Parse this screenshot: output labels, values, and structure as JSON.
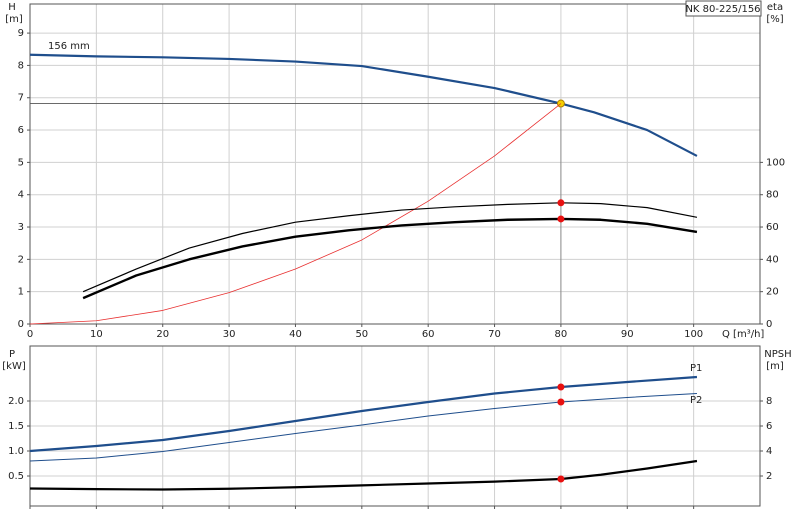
{
  "chart_data": [
    {
      "type": "line",
      "title": "NK 80-225/156",
      "y_label": "H",
      "y_unit": "[m]",
      "y2_label": "eta",
      "y2_unit": "[%]",
      "x_label": "Q [m³/h]",
      "xlim": [
        0,
        110
      ],
      "xticks": [
        0,
        10,
        20,
        30,
        40,
        50,
        60,
        70,
        80,
        90,
        100
      ],
      "ylim": [
        0,
        9.9
      ],
      "yticks": [
        0,
        1,
        2,
        3,
        4,
        5,
        6,
        7,
        8,
        9
      ],
      "y2lim": [
        0,
        198
      ],
      "y2ticks": [
        0,
        20,
        40,
        60,
        80,
        100
      ],
      "grid": true,
      "operating_point": 80,
      "series": [
        {
          "name": "156 mm",
          "color": "#1f4e8c",
          "width": 2.2,
          "marker_color": "#f5d000",
          "x": [
            0,
            10,
            20,
            30,
            40,
            50,
            60,
            70,
            80,
            85,
            93,
            100.5
          ],
          "values": [
            8.33,
            8.28,
            8.25,
            8.2,
            8.12,
            7.98,
            7.65,
            7.3,
            6.82,
            6.55,
            6.0,
            5.2
          ]
        },
        {
          "color": "#e83030",
          "width": 0.8,
          "x": [
            0,
            10,
            20,
            30,
            40,
            50,
            60,
            70,
            80
          ],
          "values": [
            0,
            0.1,
            0.42,
            0.97,
            1.7,
            2.6,
            3.8,
            5.2,
            6.82
          ]
        },
        {
          "color": "#000000",
          "width": 1.2,
          "axis": "y2",
          "marker_color": "#e81010",
          "x": [
            8,
            16,
            24,
            32,
            40,
            48,
            56,
            64,
            72,
            80,
            86,
            93,
            100.5
          ],
          "values": [
            20,
            34,
            47,
            56,
            63,
            67,
            70.5,
            72.5,
            74,
            75,
            74.5,
            72,
            66
          ]
        },
        {
          "color": "#000000",
          "width": 2.4,
          "axis": "y2",
          "marker_color": "#e81010",
          "x": [
            8,
            16,
            24,
            32,
            40,
            48,
            56,
            64,
            72,
            80,
            86,
            93,
            100.5
          ],
          "values": [
            16,
            30,
            40,
            48,
            54,
            58,
            61,
            63,
            64.5,
            65,
            64.5,
            62,
            57
          ]
        }
      ]
    },
    {
      "type": "line",
      "y_label": "P",
      "y_unit": "[kW]",
      "y2_label": "NPSH",
      "y2_unit": "[m]",
      "xlim": [
        0,
        110
      ],
      "xticks": [
        0,
        10,
        20,
        30,
        40,
        50,
        60,
        70,
        80,
        90,
        100
      ],
      "ylim": [
        -0.1,
        3.1
      ],
      "yticks": [
        0.5,
        {
          "value": 1,
          "label": "1.0"
        },
        1.5,
        {
          "value": 2,
          "label": "2.0"
        }
      ],
      "y2lim": [
        -0.4,
        12.4
      ],
      "y2ticks": [
        2,
        4,
        6,
        8
      ],
      "grid": true,
      "operating_point": 80,
      "series": [
        {
          "name": "P1",
          "color": "#1f4e8c",
          "width": 2.2,
          "marker_color": "#e81010",
          "x": [
            0,
            10,
            20,
            30,
            40,
            50,
            60,
            70,
            80,
            90,
            100.5
          ],
          "values": [
            1.0,
            1.1,
            1.22,
            1.4,
            1.6,
            1.8,
            1.98,
            2.15,
            2.28,
            2.38,
            2.48
          ]
        },
        {
          "name": "P2",
          "color": "#1f4e8c",
          "width": 1,
          "marker_color": "#e81010",
          "x": [
            0,
            10,
            20,
            30,
            40,
            50,
            60,
            70,
            80,
            90,
            100.5
          ],
          "values": [
            0.8,
            0.86,
            0.99,
            1.17,
            1.35,
            1.52,
            1.7,
            1.85,
            1.98,
            2.07,
            2.15
          ]
        },
        {
          "color": "#000000",
          "width": 2.2,
          "axis": "y2",
          "marker_color": "#e81010",
          "x": [
            0,
            10,
            20,
            30,
            40,
            50,
            60,
            70,
            80,
            86,
            93,
            100.5
          ],
          "values": [
            1.0,
            0.95,
            0.92,
            0.98,
            1.1,
            1.25,
            1.4,
            1.55,
            1.76,
            2.1,
            2.6,
            3.2
          ]
        }
      ]
    }
  ]
}
